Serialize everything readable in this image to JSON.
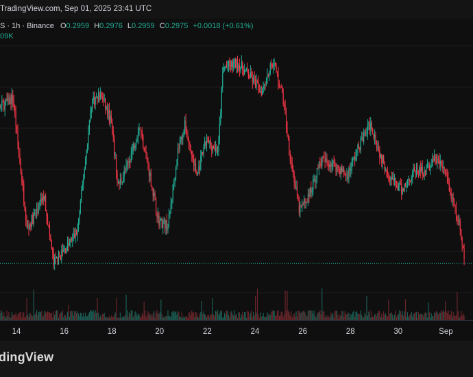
{
  "header": {
    "text": "TradingView.com, Sep 01, 2025 23:41 UTC"
  },
  "legend": {
    "symbol": "S · 1h · Binance",
    "open_label": "O",
    "open": "0.2959",
    "high_label": "H",
    "high": "0.2976",
    "low_label": "L",
    "low": "0.2959",
    "close_label": "C",
    "close": "0.2975",
    "change": "+0.0018 (+0.61%)",
    "volume": "09K"
  },
  "footer": {
    "brand": "dingView"
  },
  "colors": {
    "up": "#22ab94",
    "down": "#f23645",
    "price_line": "#22ab94"
  },
  "chart_data": {
    "type": "candlestick",
    "title": "",
    "xlabel": "",
    "ylabel": "",
    "x_ticks": [
      "14",
      "16",
      "18",
      "20",
      "22",
      "24",
      "26",
      "28",
      "30",
      "Sep"
    ],
    "last_close": 0.2975,
    "anchors": [
      {
        "day": 12.6,
        "price": 0.3245
      },
      {
        "day": 13.3,
        "price": 0.3285
      },
      {
        "day": 13.9,
        "price": 0.3305
      },
      {
        "day": 14.2,
        "price": 0.317
      },
      {
        "day": 14.5,
        "price": 0.3045
      },
      {
        "day": 14.9,
        "price": 0.308
      },
      {
        "day": 15.2,
        "price": 0.311
      },
      {
        "day": 15.6,
        "price": 0.2975
      },
      {
        "day": 16.2,
        "price": 0.301
      },
      {
        "day": 16.6,
        "price": 0.304
      },
      {
        "day": 17.2,
        "price": 0.33
      },
      {
        "day": 17.6,
        "price": 0.331
      },
      {
        "day": 18.0,
        "price": 0.326
      },
      {
        "day": 18.3,
        "price": 0.313
      },
      {
        "day": 18.7,
        "price": 0.317
      },
      {
        "day": 19.2,
        "price": 0.325
      },
      {
        "day": 19.6,
        "price": 0.316
      },
      {
        "day": 20.0,
        "price": 0.306
      },
      {
        "day": 20.4,
        "price": 0.305
      },
      {
        "day": 20.8,
        "price": 0.32
      },
      {
        "day": 21.1,
        "price": 0.325
      },
      {
        "day": 21.6,
        "price": 0.315
      },
      {
        "day": 22.0,
        "price": 0.322
      },
      {
        "day": 22.5,
        "price": 0.32
      },
      {
        "day": 22.7,
        "price": 0.3365
      },
      {
        "day": 23.3,
        "price": 0.3375
      },
      {
        "day": 23.8,
        "price": 0.335
      },
      {
        "day": 24.3,
        "price": 0.332
      },
      {
        "day": 24.8,
        "price": 0.338
      },
      {
        "day": 25.2,
        "price": 0.331
      },
      {
        "day": 25.5,
        "price": 0.3195
      },
      {
        "day": 25.9,
        "price": 0.308
      },
      {
        "day": 26.3,
        "price": 0.311
      },
      {
        "day": 26.8,
        "price": 0.318
      },
      {
        "day": 27.3,
        "price": 0.3175
      },
      {
        "day": 27.9,
        "price": 0.315
      },
      {
        "day": 28.5,
        "price": 0.322
      },
      {
        "day": 28.9,
        "price": 0.3255
      },
      {
        "day": 29.3,
        "price": 0.319
      },
      {
        "day": 29.8,
        "price": 0.314
      },
      {
        "day": 30.2,
        "price": 0.312
      },
      {
        "day": 30.7,
        "price": 0.316
      },
      {
        "day": 31.2,
        "price": 0.316
      },
      {
        "day": 31.6,
        "price": 0.3185
      },
      {
        "day": 32.0,
        "price": 0.316
      },
      {
        "day": 32.3,
        "price": 0.31
      },
      {
        "day": 32.6,
        "price": 0.305
      },
      {
        "day": 32.8,
        "price": 0.2985
      }
    ]
  }
}
